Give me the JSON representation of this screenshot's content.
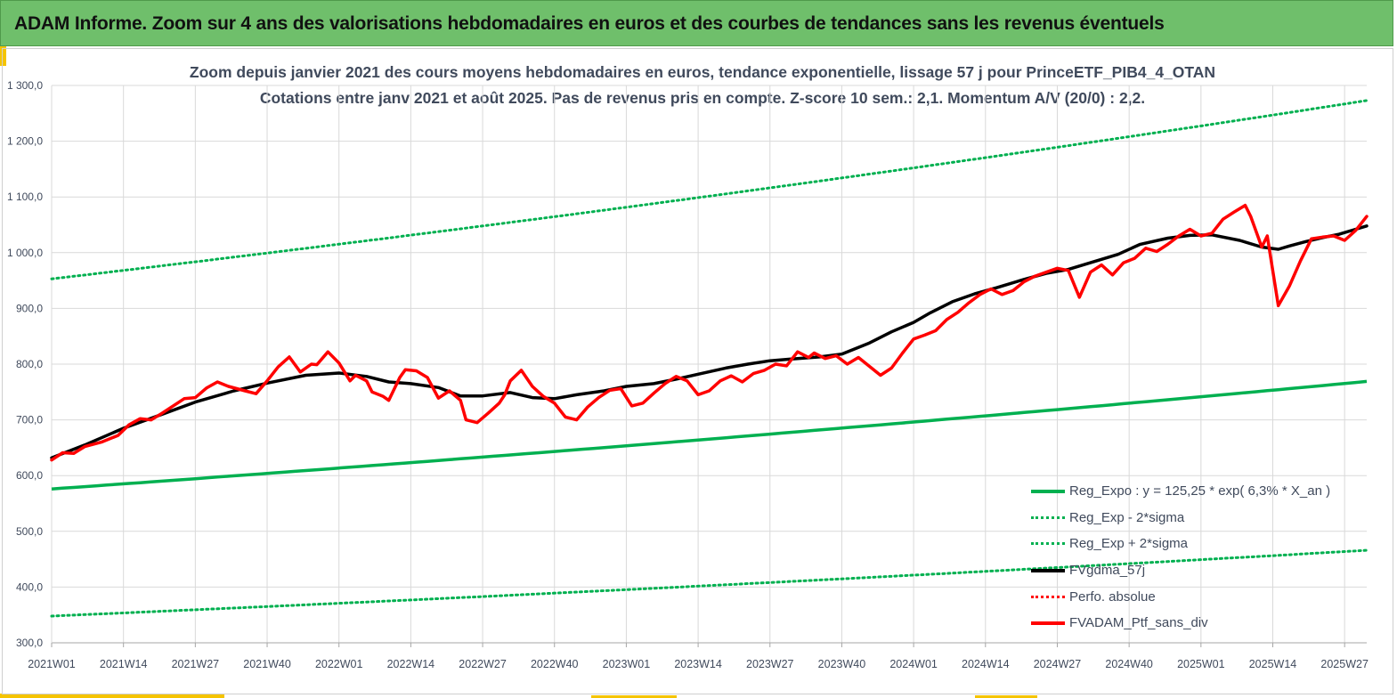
{
  "header": {
    "title": "ADAM Informe. Zoom sur 4 ans des valorisations hebdomadaires en euros et des courbes de tendances sans les revenus éventuels"
  },
  "colors": {
    "banner": "#6fbf6b",
    "accent": "#f5c400",
    "regression": "#00b050",
    "smoothed": "#000000",
    "portfolio": "#ff0000",
    "text": "#404a5c"
  },
  "chart_data": {
    "type": "line",
    "title": "Zoom depuis janvier 2021 des cours moyens hebdomadaires  en euros, tendance exponentielle, lissage 57 j pour PrinceETF_PIB4_4_OTAN",
    "subtitle": "Cotations entre janv 2021 et août 2025. Pas de revenus pris en compte. Z-score 10 sem.: 2,1. Momentum A/V (20/0) : 2,2.",
    "xlabel": "",
    "ylabel": "",
    "ylim": [
      300,
      1300
    ],
    "yticks": [
      "300,0",
      "400,0",
      "500,0",
      "600,0",
      "700,0",
      "800,0",
      "900,0",
      "1 000,0",
      "1 100,0",
      "1 200,0",
      "1 300,0"
    ],
    "xticks": [
      "2021W01",
      "2021W14",
      "2021W27",
      "2021W40",
      "2022W01",
      "2022W14",
      "2022W27",
      "2022W40",
      "2023W01",
      "2023W14",
      "2023W27",
      "2023W40",
      "2024W01",
      "2024W14",
      "2024W27",
      "2024W40",
      "2025W01",
      "2025W14",
      "2025W27"
    ],
    "x_range_weeks": [
      0,
      238
    ],
    "grid": true,
    "legend_position": "bottom-right",
    "series": [
      {
        "name": "Reg_Expo : y = 125,25 * exp( 6,3% *  X_an )",
        "style": "solid",
        "color": "#00b050",
        "x": [
          0,
          238
        ],
        "values": [
          576,
          769
        ]
      },
      {
        "name": "Reg_Exp - 2*sigma",
        "style": "dotted",
        "color": "#00b050",
        "x": [
          0,
          238
        ],
        "values": [
          348,
          466
        ]
      },
      {
        "name": "Reg_Exp + 2*sigma",
        "style": "dotted",
        "color": "#00b050",
        "x": [
          0,
          238
        ],
        "values": [
          953,
          1273
        ]
      },
      {
        "name": "FVgdma_57j",
        "style": "solid",
        "color": "#000000",
        "x": [
          0,
          6,
          13,
          20,
          26,
          33,
          39,
          46,
          52,
          57,
          61,
          65,
          70,
          74,
          78,
          83,
          87,
          91,
          95,
          100,
          104,
          109,
          113,
          117,
          122,
          126,
          130,
          135,
          139,
          143,
          148,
          152,
          156,
          159,
          163,
          167,
          171,
          176,
          180,
          184,
          188,
          193,
          197,
          202,
          206,
          210,
          215,
          219,
          222,
          224,
          227,
          230,
          233,
          236,
          238
        ],
        "values": [
          632,
          655,
          685,
          710,
          732,
          752,
          766,
          780,
          784,
          778,
          768,
          765,
          758,
          743,
          743,
          749,
          740,
          738,
          745,
          752,
          760,
          765,
          773,
          782,
          793,
          800,
          806,
          810,
          813,
          818,
          838,
          858,
          875,
          892,
          912,
          926,
          937,
          952,
          963,
          970,
          982,
          997,
          1015,
          1026,
          1031,
          1032,
          1022,
          1010,
          1006,
          1012,
          1020,
          1027,
          1033,
          1042,
          1048
        ]
      },
      {
        "name": "Perfo. absolue",
        "style": "dotted",
        "color": "#ff0000",
        "x": [],
        "values": []
      },
      {
        "name": "FVADAM_Ptf_sans_div",
        "style": "solid",
        "color": "#ff0000",
        "x": [
          0,
          2,
          4,
          6,
          9,
          12,
          14,
          16,
          18,
          20,
          22,
          24,
          26,
          28,
          30,
          32,
          35,
          37,
          39,
          41,
          43,
          45,
          47,
          48,
          50,
          52,
          54,
          55,
          57,
          58,
          60,
          61,
          63,
          64,
          66,
          68,
          70,
          72,
          74,
          75,
          77,
          79,
          81,
          82,
          83,
          85,
          87,
          89,
          91,
          93,
          95,
          97,
          99,
          101,
          103,
          105,
          107,
          109,
          111,
          113,
          115,
          117,
          119,
          121,
          123,
          125,
          127,
          129,
          131,
          133,
          135,
          137,
          138,
          140,
          142,
          144,
          146,
          148,
          150,
          152,
          154,
          156,
          158,
          160,
          162,
          164,
          166,
          168,
          170,
          172,
          174,
          176,
          178,
          180,
          182,
          184,
          186,
          188,
          190,
          192,
          194,
          196,
          198,
          200,
          202,
          204,
          206,
          208,
          210,
          212,
          214,
          216,
          217,
          219,
          220,
          222,
          224,
          226,
          228,
          230,
          232,
          234,
          236,
          238
        ],
        "values": [
          628,
          641,
          640,
          652,
          660,
          672,
          691,
          702,
          700,
          712,
          725,
          738,
          740,
          757,
          768,
          760,
          752,
          747,
          770,
          795,
          813,
          786,
          800,
          799,
          822,
          802,
          770,
          780,
          770,
          750,
          742,
          735,
          776,
          790,
          788,
          776,
          739,
          752,
          735,
          700,
          695,
          712,
          730,
          745,
          770,
          789,
          760,
          742,
          730,
          705,
          700,
          723,
          740,
          753,
          756,
          725,
          730,
          748,
          765,
          778,
          770,
          745,
          752,
          770,
          779,
          768,
          783,
          789,
          800,
          797,
          822,
          812,
          820,
          810,
          815,
          800,
          812,
          796,
          780,
          793,
          820,
          845,
          852,
          860,
          880,
          893,
          910,
          925,
          935,
          925,
          932,
          948,
          958,
          965,
          972,
          968,
          920,
          965,
          978,
          960,
          982,
          990,
          1008,
          1002,
          1015,
          1030,
          1042,
          1030,
          1035,
          1060,
          1073,
          1085,
          1065,
          1010,
          1030,
          905,
          940,
          985,
          1025,
          1028,
          1030,
          1022,
          1040,
          1065
        ]
      }
    ]
  }
}
